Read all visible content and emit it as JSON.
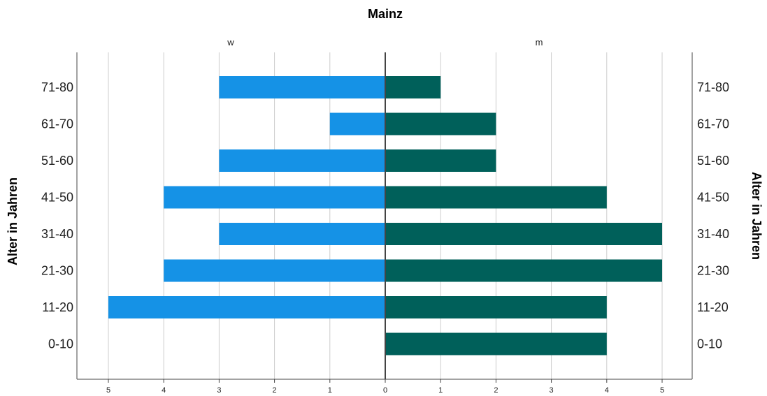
{
  "chart_data": {
    "type": "bar",
    "orientation": "horizontal-population-pyramid",
    "title": "Mainz",
    "categories": [
      "0-10",
      "11-20",
      "21-30",
      "31-40",
      "41-50",
      "51-60",
      "61-70",
      "71-80"
    ],
    "series": [
      {
        "name": "w",
        "side": "left",
        "color": "#1592e6",
        "values": [
          0,
          5,
          4,
          3,
          4,
          3,
          1,
          3
        ]
      },
      {
        "name": "m",
        "side": "right",
        "color": "#00605a",
        "values": [
          4,
          4,
          5,
          5,
          4,
          2,
          2,
          1
        ]
      }
    ],
    "xlim": [
      0,
      5
    ],
    "xticks": [
      "5",
      "4",
      "3",
      "2",
      "1",
      "0",
      "1",
      "2",
      "3",
      "4",
      "5"
    ],
    "ylabel": "Alter in Jahren",
    "grid": true
  }
}
